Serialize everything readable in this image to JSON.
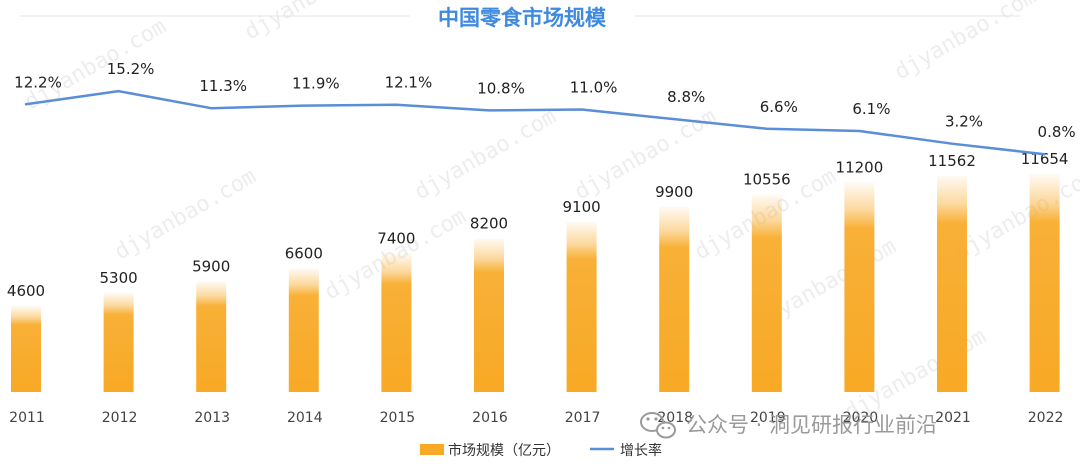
{
  "chart_data": {
    "type": "bar",
    "title": "中国零食市场规模",
    "categories": [
      "2011",
      "2012",
      "2013",
      "2014",
      "2015",
      "2016",
      "2017",
      "2018",
      "2019",
      "2020",
      "2021",
      "2022"
    ],
    "series": [
      {
        "name": "市场规模（亿元）",
        "type": "bar",
        "values": [
          4600,
          5300,
          5900,
          6600,
          7400,
          8200,
          9100,
          9900,
          10556,
          11200,
          11562,
          11654
        ],
        "labels": [
          "4600",
          "5300",
          "5900",
          "6600",
          "7400",
          "8200",
          "9100",
          "9900",
          "10556",
          "11200",
          "11562",
          "11654"
        ],
        "color": "#f8a925"
      },
      {
        "name": "增长率",
        "type": "line",
        "values": [
          12.2,
          15.2,
          11.3,
          11.9,
          12.1,
          10.8,
          11.0,
          8.8,
          6.6,
          6.1,
          3.2,
          0.8
        ],
        "labels": [
          "12.2%",
          "15.2%",
          "11.3%",
          "11.9%",
          "12.1%",
          "10.8%",
          "11.0%",
          "8.8%",
          "6.6%",
          "6.1%",
          "3.2%",
          "0.8%"
        ],
        "color": "#5b8ed8"
      }
    ],
    "legend": "bottom-center",
    "grid": false
  },
  "watermark": {
    "text": "djyanbao.com"
  },
  "brand": {
    "icon": "wechat-icon",
    "text": "公众号 · 洞见研报行业前沿"
  }
}
